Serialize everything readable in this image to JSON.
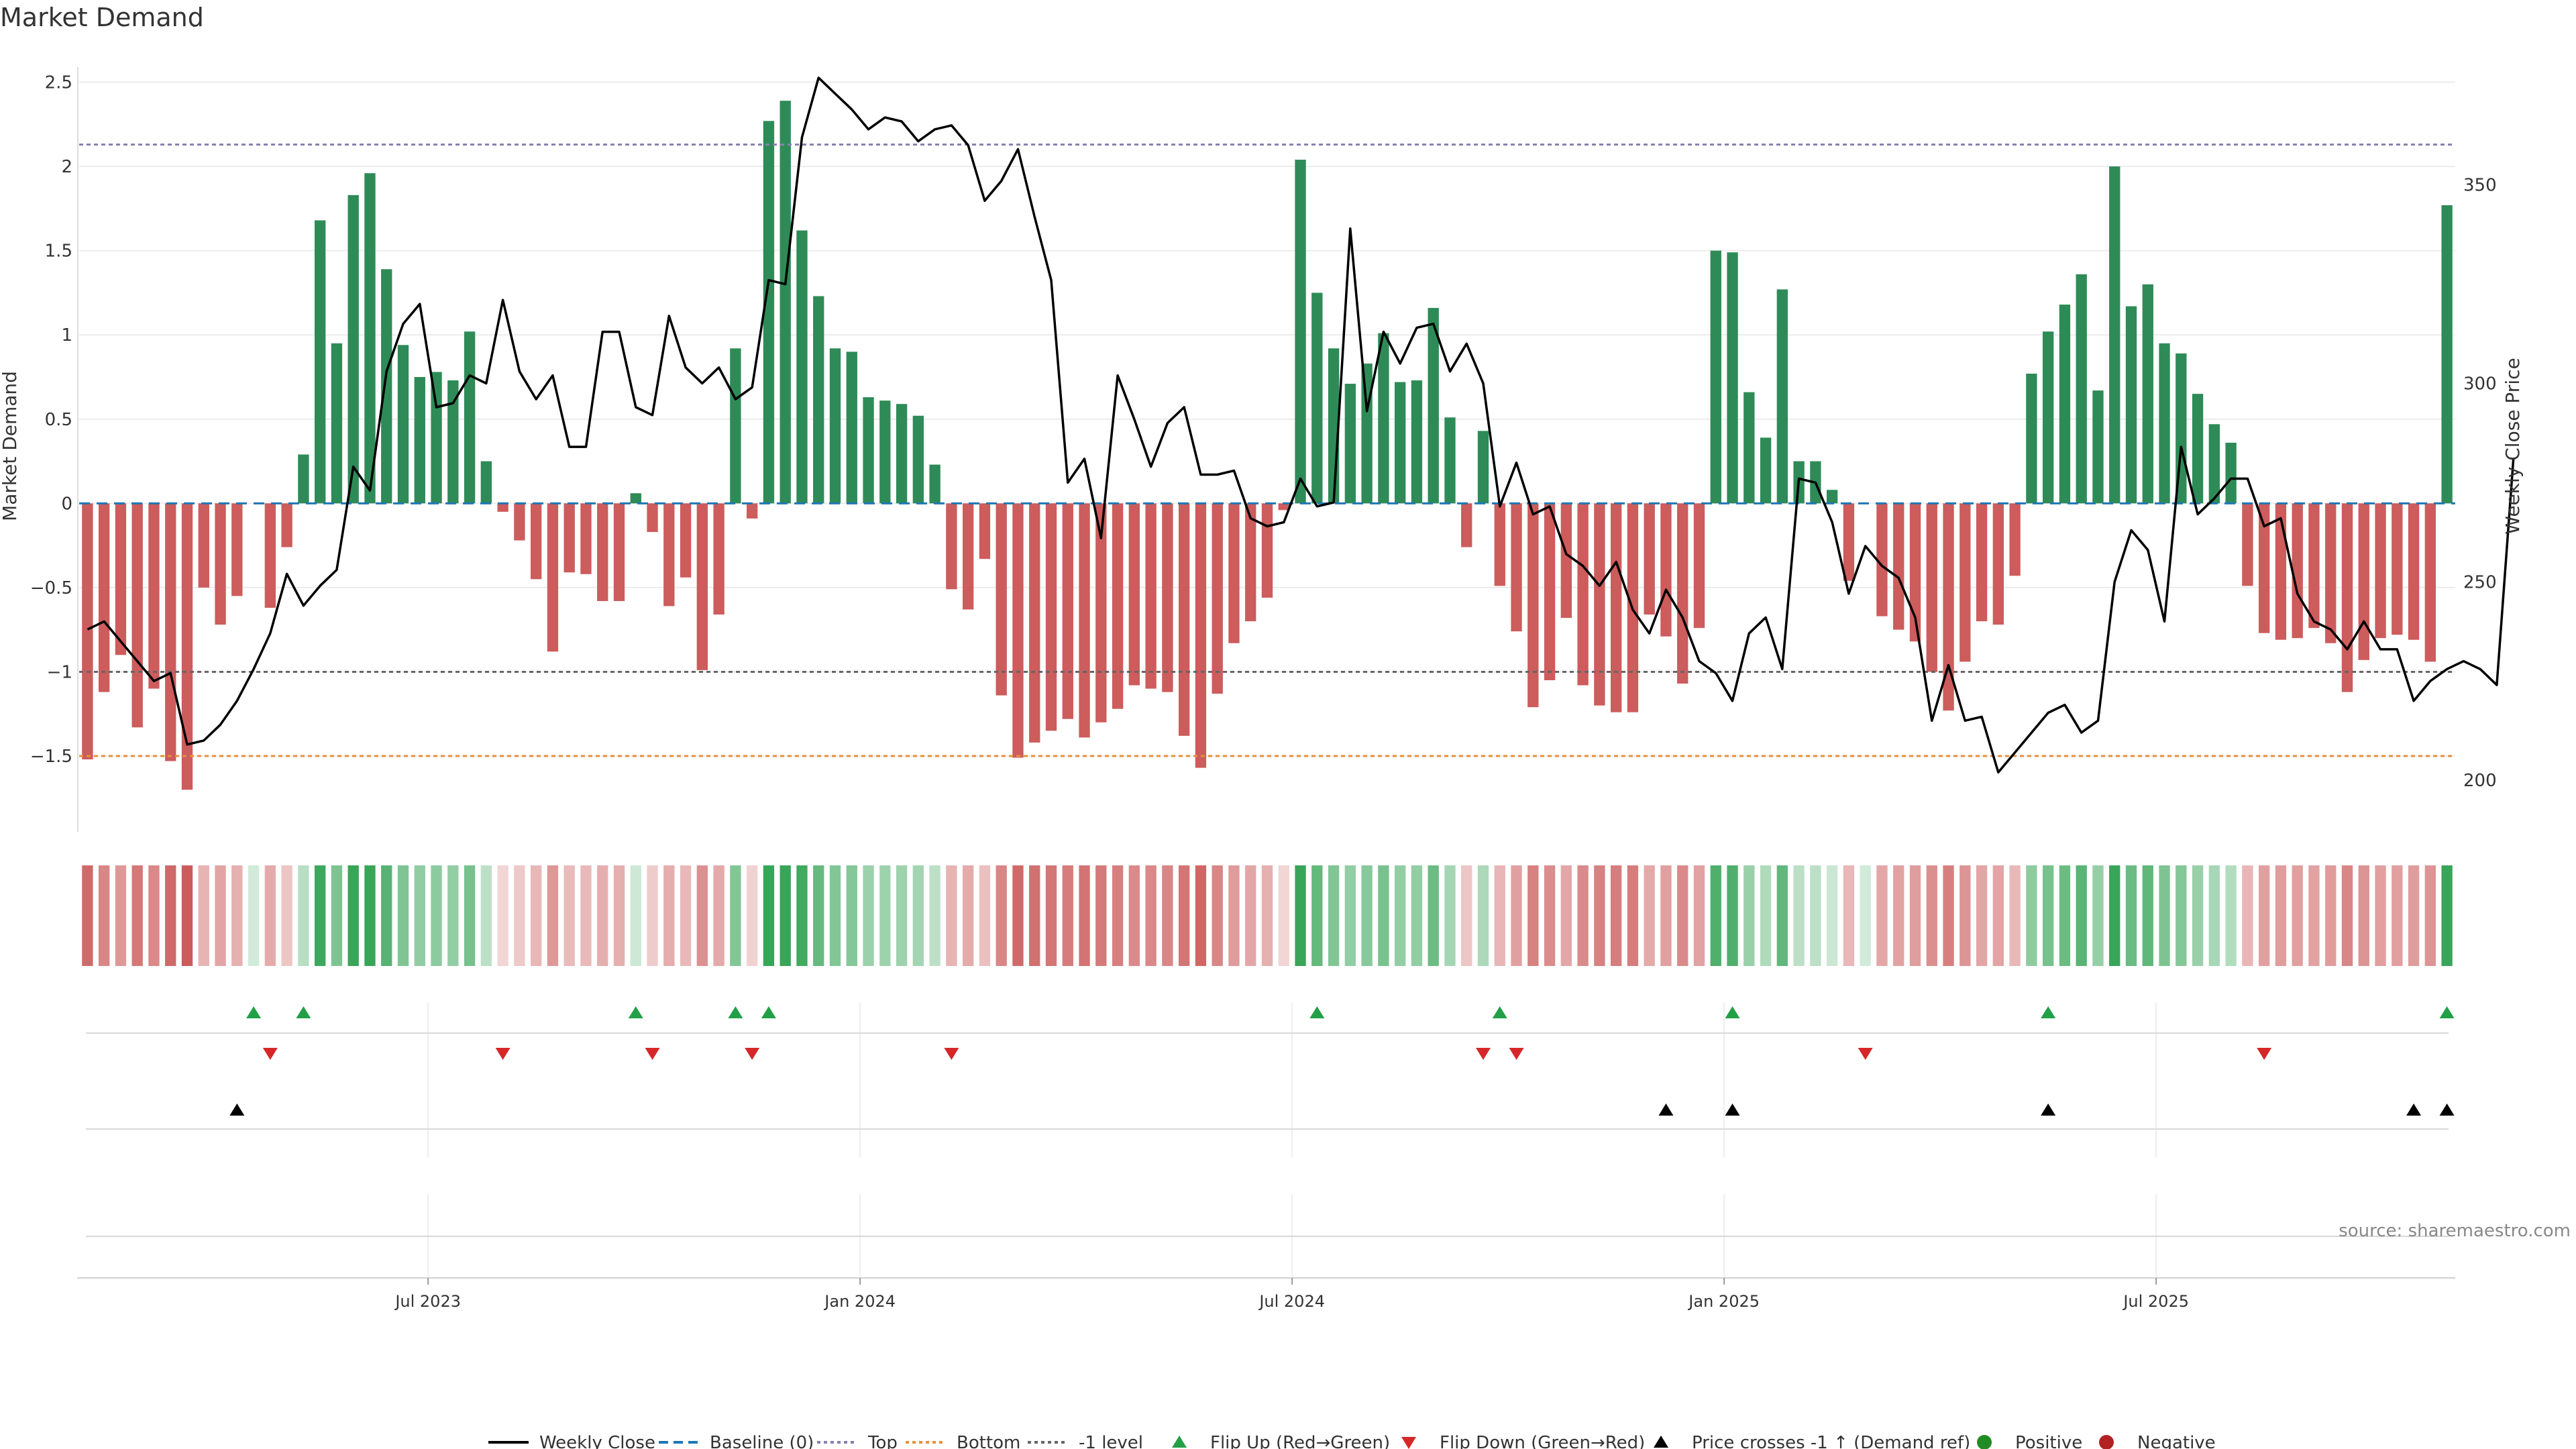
{
  "title": "Market Demand",
  "source": "source: sharemaestro.com",
  "colors": {
    "positive": "#2e8b57",
    "negative": "#cd5c5c",
    "line": "#000000",
    "baseline": "#1f77b4",
    "top": "#8a7fb0",
    "bottom": "#e69138",
    "minus1": "#666666",
    "flip_up": "#22a047",
    "flip_down": "#d62728",
    "cross": "#000000"
  },
  "chart_data": {
    "type": "bar",
    "title": "Market Demand",
    "ylabel": "Market Demand",
    "y2label": "Weekly Close Price",
    "ylim": [
      -1.95,
      2.55
    ],
    "y2lim": [
      187,
      378
    ],
    "yticks": [
      "2.5",
      "2",
      "1.5",
      "1",
      "0.5",
      "0",
      "−0.5",
      "−1",
      "−1.5"
    ],
    "ytick_values": [
      2.5,
      2,
      1.5,
      1,
      0.5,
      0,
      -0.5,
      -1,
      -1.5
    ],
    "y2ticks": [
      "350",
      "300",
      "250",
      "200"
    ],
    "y2tick_values": [
      350,
      300,
      250,
      200
    ],
    "xticks": [
      "Jul 2023",
      "Jan 2024",
      "Jul 2024",
      "Jan 2025",
      "Jul 2025"
    ],
    "xtick_weeks": [
      21,
      47,
      73,
      99,
      125
    ],
    "reference_lines": {
      "top": 2.13,
      "bottom": -1.5,
      "minus1": -1,
      "baseline": 0
    },
    "demand": [
      -1.52,
      -1.12,
      -0.9,
      -1.33,
      -1.1,
      -1.53,
      -1.7,
      -0.5,
      -0.72,
      -0.55,
      0,
      -0.62,
      -0.26,
      0.29,
      1.68,
      0.95,
      1.83,
      1.96,
      1.39,
      0.94,
      0.75,
      0.78,
      0.73,
      1.02,
      0.25,
      -0.05,
      -0.22,
      -0.45,
      -0.88,
      -0.41,
      -0.42,
      -0.58,
      -0.58,
      0.06,
      -0.17,
      -0.61,
      -0.44,
      -0.99,
      -0.66,
      0.92,
      -0.09,
      2.27,
      2.39,
      1.62,
      1.23,
      0.92,
      0.9,
      0.63,
      0.61,
      0.59,
      0.52,
      0.23,
      -0.51,
      -0.63,
      -0.33,
      -1.14,
      -1.51,
      -1.42,
      -1.35,
      -1.28,
      -1.39,
      -1.3,
      -1.22,
      -1.08,
      -1.1,
      -1.12,
      -1.38,
      -1.57,
      -1.13,
      -0.83,
      -0.7,
      -0.56,
      -0.04,
      2.04,
      1.25,
      0.92,
      0.71,
      0.83,
      1.01,
      0.72,
      0.73,
      1.16,
      0.51,
      -0.26,
      0.43,
      -0.49,
      -0.76,
      -1.21,
      -1.05,
      -0.68,
      -1.08,
      -1.2,
      -1.24,
      -1.24,
      -0.66,
      -0.79,
      -1.07,
      -0.74,
      1.5,
      1.49,
      0.66,
      0.39,
      1.27,
      0.25,
      0.25,
      0.08,
      -0.46,
      0,
      -0.67,
      -0.75,
      -0.82,
      -1.0,
      -1.23,
      -0.94,
      -0.7,
      -0.72,
      -0.43,
      0.77,
      1.02,
      1.18,
      1.36,
      0.67,
      2.0,
      1.17,
      1.3,
      0.95,
      0.89,
      0.65,
      0.47,
      0.36,
      -0.49,
      -0.77,
      -0.81,
      -0.8,
      -0.74,
      -0.83,
      -1.12,
      -0.93,
      -0.8,
      -0.78,
      -0.81,
      -0.94,
      1.77
    ],
    "weekly_close": [
      238,
      240,
      235,
      230,
      225,
      227,
      209,
      210,
      214,
      220,
      228,
      237,
      252,
      244,
      249,
      253,
      279,
      273,
      303,
      315,
      320,
      294,
      295,
      302,
      300,
      321,
      303,
      296,
      302,
      284,
      284,
      313,
      313,
      294,
      292,
      317,
      304,
      300,
      304,
      296,
      299,
      326,
      325,
      362,
      377,
      373,
      369,
      364,
      367,
      366,
      361,
      364,
      365,
      360,
      346,
      351,
      359,
      342,
      326,
      275,
      281,
      261,
      302,
      291,
      279,
      290,
      294,
      277,
      277,
      278,
      266,
      264,
      265,
      276,
      269,
      270,
      339,
      293,
      313,
      305,
      314,
      315,
      303,
      310,
      300,
      269,
      280,
      267,
      269,
      257,
      254,
      249,
      255,
      243,
      237,
      248,
      241,
      230,
      227,
      220,
      237,
      241,
      228,
      276,
      275,
      265,
      247,
      259,
      254,
      251,
      241,
      215,
      229,
      215,
      216,
      202,
      207,
      212,
      217,
      219,
      212,
      215,
      250,
      263,
      258,
      240,
      284,
      267,
      271,
      276,
      276,
      264,
      266,
      247,
      240,
      238,
      233,
      240,
      233,
      233,
      220,
      225,
      228,
      230,
      228,
      224,
      281
    ],
    "flip_up_weeks": [
      10,
      13,
      33,
      39,
      41,
      74,
      85,
      99,
      118,
      142
    ],
    "flip_down_weeks": [
      11,
      25,
      34,
      40,
      52,
      84,
      86,
      107,
      131
    ],
    "cross_up_weeks": [
      9,
      95,
      99,
      118,
      140,
      142
    ],
    "legend": [
      "Weekly Close",
      "Baseline (0)",
      "Top",
      "Bottom",
      "-1 level",
      "Flip Up (Red→Green)",
      "Flip Down (Green→Red)",
      "Price crosses -1 ↑ (Demand ref)",
      "Positive",
      "Negative"
    ]
  }
}
